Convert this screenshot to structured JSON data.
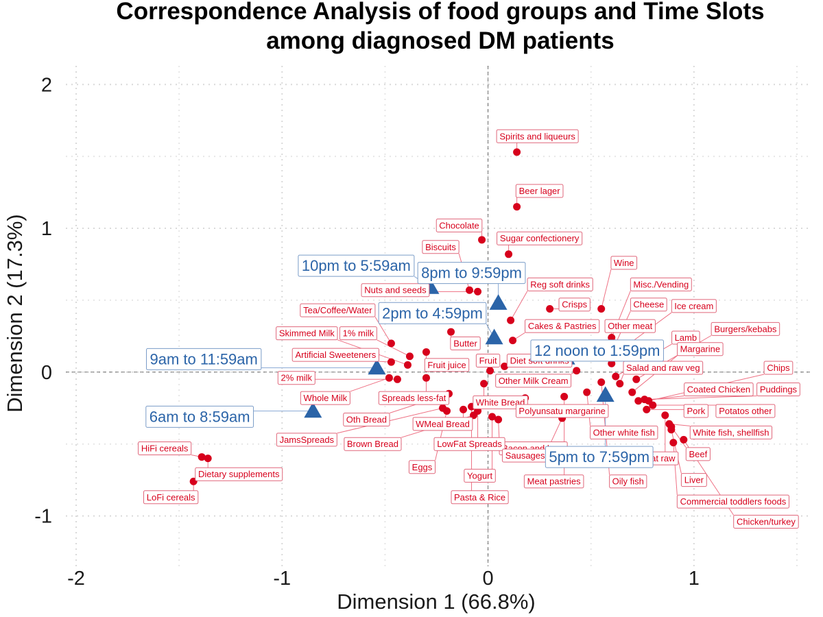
{
  "chart_data": {
    "type": "scatter",
    "title": [
      "Correspondence Analysis of food groups and Time Slots",
      "among diagnosed DM patients"
    ],
    "xlabel": "Dimension 1 (66.8%)",
    "ylabel": "Dimension 2 (17.3%)",
    "xlim": [
      -2.05,
      1.57
    ],
    "ylim": [
      -1.35,
      2.13
    ],
    "xticks": [
      -2,
      -1,
      0,
      1
    ],
    "yticks": [
      -1,
      0,
      1,
      2
    ],
    "grid": "dotted",
    "reference_lines": {
      "x": 0,
      "y": 0
    },
    "colors": {
      "rows": "#d7001c",
      "columns": "#2b64a8"
    },
    "row_points": [
      {
        "name": "Spirits and liqueurs",
        "x": 0.14,
        "y": 1.53,
        "lx": 0.24,
        "ly": 1.64
      },
      {
        "name": "Beer lager",
        "x": 0.14,
        "y": 1.15,
        "lx": 0.25,
        "ly": 1.26
      },
      {
        "name": "Chocolate",
        "x": -0.03,
        "y": 0.92,
        "lx": -0.14,
        "ly": 1.02
      },
      {
        "name": "Sugar confectionery",
        "x": 0.1,
        "y": 0.82,
        "lx": 0.25,
        "ly": 0.93
      },
      {
        "name": "Biscuits",
        "x": -0.09,
        "y": 0.57,
        "lx": -0.23,
        "ly": 0.87
      },
      {
        "name": "Wine",
        "x": 0.55,
        "y": 0.44,
        "lx": 0.66,
        "ly": 0.76
      },
      {
        "name": "Reg soft drinks",
        "x": 0.11,
        "y": 0.36,
        "lx": 0.35,
        "ly": 0.61
      },
      {
        "name": "Misc./Vending",
        "x": 0.6,
        "y": 0.24,
        "lx": 0.84,
        "ly": 0.61
      },
      {
        "name": "Nuts and seeds",
        "x": -0.05,
        "y": 0.56,
        "lx": -0.45,
        "ly": 0.57
      },
      {
        "name": "Crisps",
        "x": 0.3,
        "y": 0.44,
        "lx": 0.42,
        "ly": 0.47
      },
      {
        "name": "Cheese",
        "x": 0.62,
        "y": 0.2,
        "lx": 0.78,
        "ly": 0.47
      },
      {
        "name": "Ice cream",
        "x": 0.65,
        "y": 0.16,
        "lx": 1.0,
        "ly": 0.46
      },
      {
        "name": "Tea/Coffee/Water",
        "x": -0.47,
        "y": 0.2,
        "lx": -0.73,
        "ly": 0.43
      },
      {
        "name": "Cakes & Pastries",
        "x": 0.12,
        "y": 0.22,
        "lx": 0.36,
        "ly": 0.32
      },
      {
        "name": "Other meat",
        "x": 0.6,
        "y": 0.06,
        "lx": 0.69,
        "ly": 0.32
      },
      {
        "name": "1% milk",
        "x": -0.38,
        "y": 0.11,
        "lx": -0.63,
        "ly": 0.27
      },
      {
        "name": "Skimmed Milk",
        "x": -0.39,
        "y": 0.05,
        "lx": -0.88,
        "ly": 0.27
      },
      {
        "name": "Burgers/kebabs",
        "x": 0.72,
        "y": -0.05,
        "lx": 1.25,
        "ly": 0.3
      },
      {
        "name": "Lamb",
        "x": 0.62,
        "y": -0.03,
        "lx": 0.96,
        "ly": 0.24
      },
      {
        "name": "Butter",
        "x": -0.18,
        "y": 0.28,
        "lx": -0.11,
        "ly": 0.2
      },
      {
        "name": "Margarine",
        "x": 0.7,
        "y": -0.14,
        "lx": 1.03,
        "ly": 0.16
      },
      {
        "name": "Artificial Sweeteners",
        "x": -0.47,
        "y": 0.07,
        "lx": -0.74,
        "ly": 0.12
      },
      {
        "name": "Fruit",
        "x": 0.01,
        "y": 0.01,
        "lx": 0.0,
        "ly": 0.08
      },
      {
        "name": "Diet soft drinks",
        "x": 0.08,
        "y": 0.04,
        "lx": 0.25,
        "ly": 0.08
      },
      {
        "name": "Fruit juice",
        "x": -0.3,
        "y": 0.14,
        "lx": -0.2,
        "ly": 0.05
      },
      {
        "name": "Salad and raw veg",
        "x": 0.64,
        "y": -0.08,
        "lx": 0.85,
        "ly": 0.03
      },
      {
        "name": "Chips",
        "x": 0.78,
        "y": -0.2,
        "lx": 1.41,
        "ly": 0.03
      },
      {
        "name": "2% milk",
        "x": -0.44,
        "y": -0.05,
        "lx": -0.93,
        "ly": -0.04
      },
      {
        "name": "Other Milk Cream",
        "x": 0.43,
        "y": 0.01,
        "lx": 0.22,
        "ly": -0.06
      },
      {
        "name": "Coated Chicken",
        "x": 0.73,
        "y": -0.2,
        "lx": 1.12,
        "ly": -0.12
      },
      {
        "name": "Puddings",
        "x": 0.76,
        "y": -0.19,
        "lx": 1.41,
        "ly": -0.12
      },
      {
        "name": "Spreads less-fat",
        "x": -0.3,
        "y": -0.04,
        "lx": -0.36,
        "ly": -0.18
      },
      {
        "name": "Whole Milk",
        "x": -0.48,
        "y": -0.04,
        "lx": -0.79,
        "ly": -0.18
      },
      {
        "name": "White Bread",
        "x": -0.02,
        "y": -0.08,
        "lx": 0.06,
        "ly": -0.21
      },
      {
        "name": "Pork",
        "x": 0.77,
        "y": -0.26,
        "lx": 1.01,
        "ly": -0.27
      },
      {
        "name": "Potatos other",
        "x": 0.8,
        "y": -0.23,
        "lx": 1.25,
        "ly": -0.27
      },
      {
        "name": "Polyunsatu margarine",
        "x": 0.18,
        "y": -0.18,
        "lx": 0.36,
        "ly": -0.27
      },
      {
        "name": "Oth Bread",
        "x": -0.19,
        "y": -0.15,
        "lx": -0.59,
        "ly": -0.33
      },
      {
        "name": "WMeal Bread",
        "x": -0.12,
        "y": -0.26,
        "lx": -0.22,
        "ly": -0.36
      },
      {
        "name": "White fish, shellfish",
        "x": 0.88,
        "y": -0.36,
        "lx": 1.18,
        "ly": -0.42
      },
      {
        "name": "JamsSpreads",
        "x": -0.22,
        "y": -0.25,
        "lx": -0.88,
        "ly": -0.47
      },
      {
        "name": "Other white fish",
        "x": 0.48,
        "y": -0.14,
        "lx": 0.66,
        "ly": -0.42
      },
      {
        "name": "Bacon and ham",
        "x": 0.05,
        "y": -0.33,
        "lx": 0.22,
        "ly": -0.53
      },
      {
        "name": "Brown Bread",
        "x": -0.07,
        "y": -0.3,
        "lx": -0.56,
        "ly": -0.5
      },
      {
        "name": "LowFat Spreads",
        "x": -0.05,
        "y": -0.27,
        "lx": -0.09,
        "ly": -0.5
      },
      {
        "name": "HiFi cereals",
        "x": -1.39,
        "y": -0.59,
        "lx": -1.57,
        "ly": -0.53
      },
      {
        "name": "Sausages",
        "x": 0.36,
        "y": -0.32,
        "lx": 0.18,
        "ly": -0.58
      },
      {
        "name": "Beef",
        "x": 0.89,
        "y": -0.38,
        "lx": 1.02,
        "ly": -0.57
      },
      {
        "name": "Meat raw",
        "x": 0.86,
        "y": -0.3,
        "lx": 0.82,
        "ly": -0.6
      },
      {
        "name": "Eggs",
        "x": -0.2,
        "y": -0.27,
        "lx": -0.32,
        "ly": -0.66
      },
      {
        "name": "Dietary supplements",
        "x": -1.36,
        "y": -0.6,
        "lx": -1.21,
        "ly": -0.71
      },
      {
        "name": "Yogurt",
        "x": 0.02,
        "y": -0.31,
        "lx": -0.04,
        "ly": -0.72
      },
      {
        "name": "Meat pastries",
        "x": 0.37,
        "y": -0.17,
        "lx": 0.32,
        "ly": -0.76
      },
      {
        "name": "Oily fish",
        "x": 0.55,
        "y": -0.07,
        "lx": 0.68,
        "ly": -0.76
      },
      {
        "name": "Liver",
        "x": 0.89,
        "y": -0.4,
        "lx": 1.0,
        "ly": -0.75
      },
      {
        "name": "LoFi cereals",
        "x": -1.43,
        "y": -0.76,
        "lx": -1.54,
        "ly": -0.87
      },
      {
        "name": "Pasta & Rice",
        "x": -0.08,
        "y": -0.24,
        "lx": -0.04,
        "ly": -0.87
      },
      {
        "name": "Commercial toddlers foods",
        "x": 0.9,
        "y": -0.49,
        "lx": 1.19,
        "ly": -0.9
      },
      {
        "name": "Chicken/turkey",
        "x": 0.95,
        "y": -0.47,
        "lx": 1.35,
        "ly": -1.04
      }
    ],
    "column_points": [
      {
        "name": "10pm to 5:59am",
        "x": -0.28,
        "y": 0.59,
        "lx": -0.64,
        "ly": 0.74
      },
      {
        "name": "8pm to 9:59pm",
        "x": 0.05,
        "y": 0.48,
        "lx": -0.08,
        "ly": 0.69
      },
      {
        "name": "2pm to 4:59pm",
        "x": 0.03,
        "y": 0.24,
        "lx": -0.27,
        "ly": 0.41
      },
      {
        "name": "12 noon to 1:59pm",
        "x": 0.38,
        "y": 0.1,
        "lx": 0.53,
        "ly": 0.15
      },
      {
        "name": "9am to 11:59am",
        "x": -0.54,
        "y": 0.03,
        "lx": -1.38,
        "ly": 0.09
      },
      {
        "name": "6am to 8:59am",
        "x": -0.85,
        "y": -0.27,
        "lx": -1.4,
        "ly": -0.31
      },
      {
        "name": "5pm to 7:59pm",
        "x": 0.57,
        "y": -0.16,
        "lx": 0.54,
        "ly": -0.59
      }
    ]
  }
}
